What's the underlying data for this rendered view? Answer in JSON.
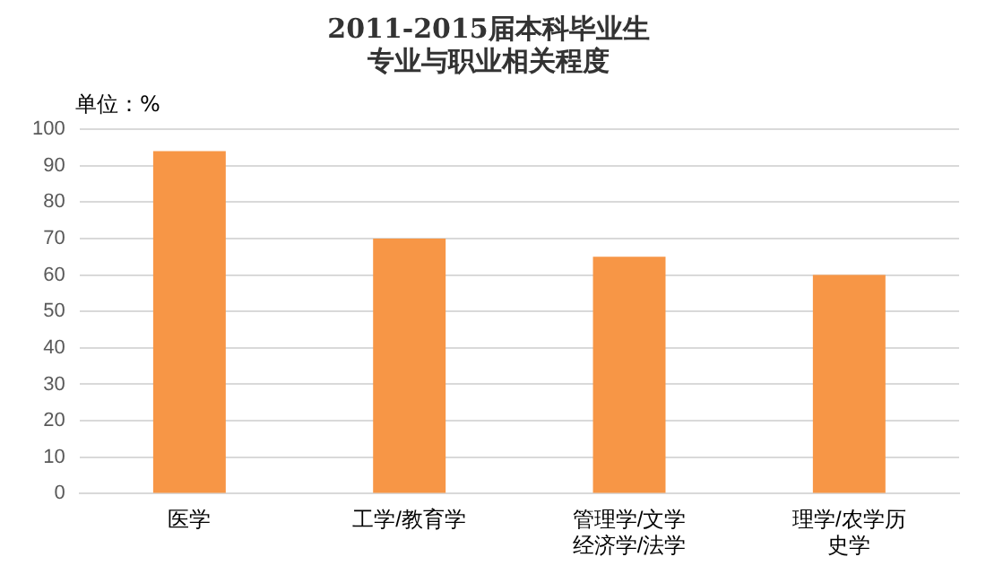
{
  "chart_data": {
    "type": "bar",
    "title": "2011-2015届本科毕业生专业与职业相关程度",
    "ylabel": "单位：%",
    "categories": [
      "医学",
      "工学/教育学",
      "管理学/文学经济学/法学",
      "理学/农学历史学"
    ],
    "values": [
      94,
      70,
      65,
      60
    ],
    "color": "#f79646",
    "ylim": [
      0,
      100
    ],
    "yticks": [
      0,
      10,
      20,
      30,
      40,
      50,
      60,
      70,
      80,
      90,
      100
    ],
    "grid": "y",
    "legend": false
  }
}
